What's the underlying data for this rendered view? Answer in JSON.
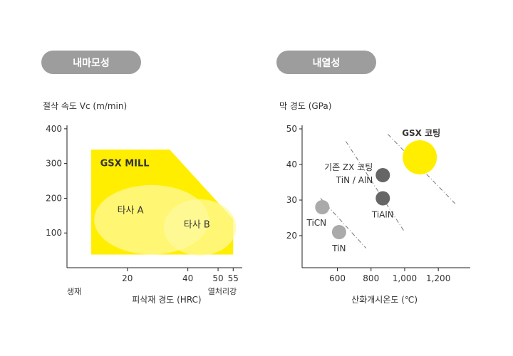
{
  "sections": {
    "left_title": "내마모성",
    "right_title": "내열성"
  },
  "colors": {
    "accent_yellow": "#ffee00",
    "pill_gray": "#9d9d9d",
    "dot_dark": "#666666",
    "dot_light": "#aaaaaa"
  },
  "chart_data": [
    {
      "type": "area",
      "ylabel": "절삭 속도 Vc (m/min)",
      "xlabel": "피삭재 경도 (HRC)",
      "x_ticks": [
        "20",
        "40",
        "50",
        "55"
      ],
      "y_ticks": [
        "100",
        "200",
        "300",
        "400"
      ],
      "xlim": [
        0,
        58
      ],
      "ylim": [
        0,
        410
      ],
      "x_end_labels": {
        "left": "생재",
        "right": "열처리강"
      },
      "regions": [
        {
          "name": "GSX MILL",
          "color": "#ffee00",
          "polygon": [
            [
              8,
              38
            ],
            [
              8,
              340
            ],
            [
              34,
              340
            ],
            [
              55,
              140
            ],
            [
              55,
              38
            ]
          ]
        },
        {
          "name": "타사 A",
          "color": "#fffaa0",
          "ellipse": {
            "cx": 28,
            "cy": 138,
            "rx": 19,
            "ry": 100
          }
        },
        {
          "name": "타사 B",
          "color": "#fffaa0",
          "ellipse": {
            "cx": 44,
            "cy": 116,
            "rx": 12,
            "ry": 81
          }
        }
      ]
    },
    {
      "type": "scatter",
      "ylabel": "막 경도 (GPa)",
      "xlabel": "산화개시온도 (℃)",
      "x_ticks": [
        "600",
        "800",
        "1,000",
        "1,200"
      ],
      "y_ticks": [
        "20",
        "30",
        "40",
        "50"
      ],
      "xlim": [
        390,
        1390
      ],
      "ylim": [
        11,
        51
      ],
      "points": [
        {
          "label": "TiCN",
          "x": 510,
          "y": 28,
          "color": "#aaaaaa",
          "size": "small"
        },
        {
          "label": "TiN",
          "x": 610,
          "y": 21,
          "color": "#aaaaaa",
          "size": "small"
        },
        {
          "label": "TiN / AlN",
          "x": 870,
          "y": 37,
          "color": "#666666",
          "size": "small"
        },
        {
          "label": "TiAlN",
          "x": 870,
          "y": 30.5,
          "color": "#666666",
          "size": "small"
        },
        {
          "label": "GSX 코팅",
          "x": 1090,
          "y": 42,
          "color": "#ffee00",
          "size": "large"
        }
      ],
      "annotations": [
        "기존 ZX 코팅"
      ],
      "trend_lines": [
        {
          "from": [
            500,
            30.5
          ],
          "to": [
            770,
            16.5
          ]
        },
        {
          "from": [
            650,
            46.5
          ],
          "to": [
            1000,
            21
          ]
        },
        {
          "from": [
            900,
            48.5
          ],
          "to": [
            1300,
            29
          ]
        }
      ]
    }
  ]
}
